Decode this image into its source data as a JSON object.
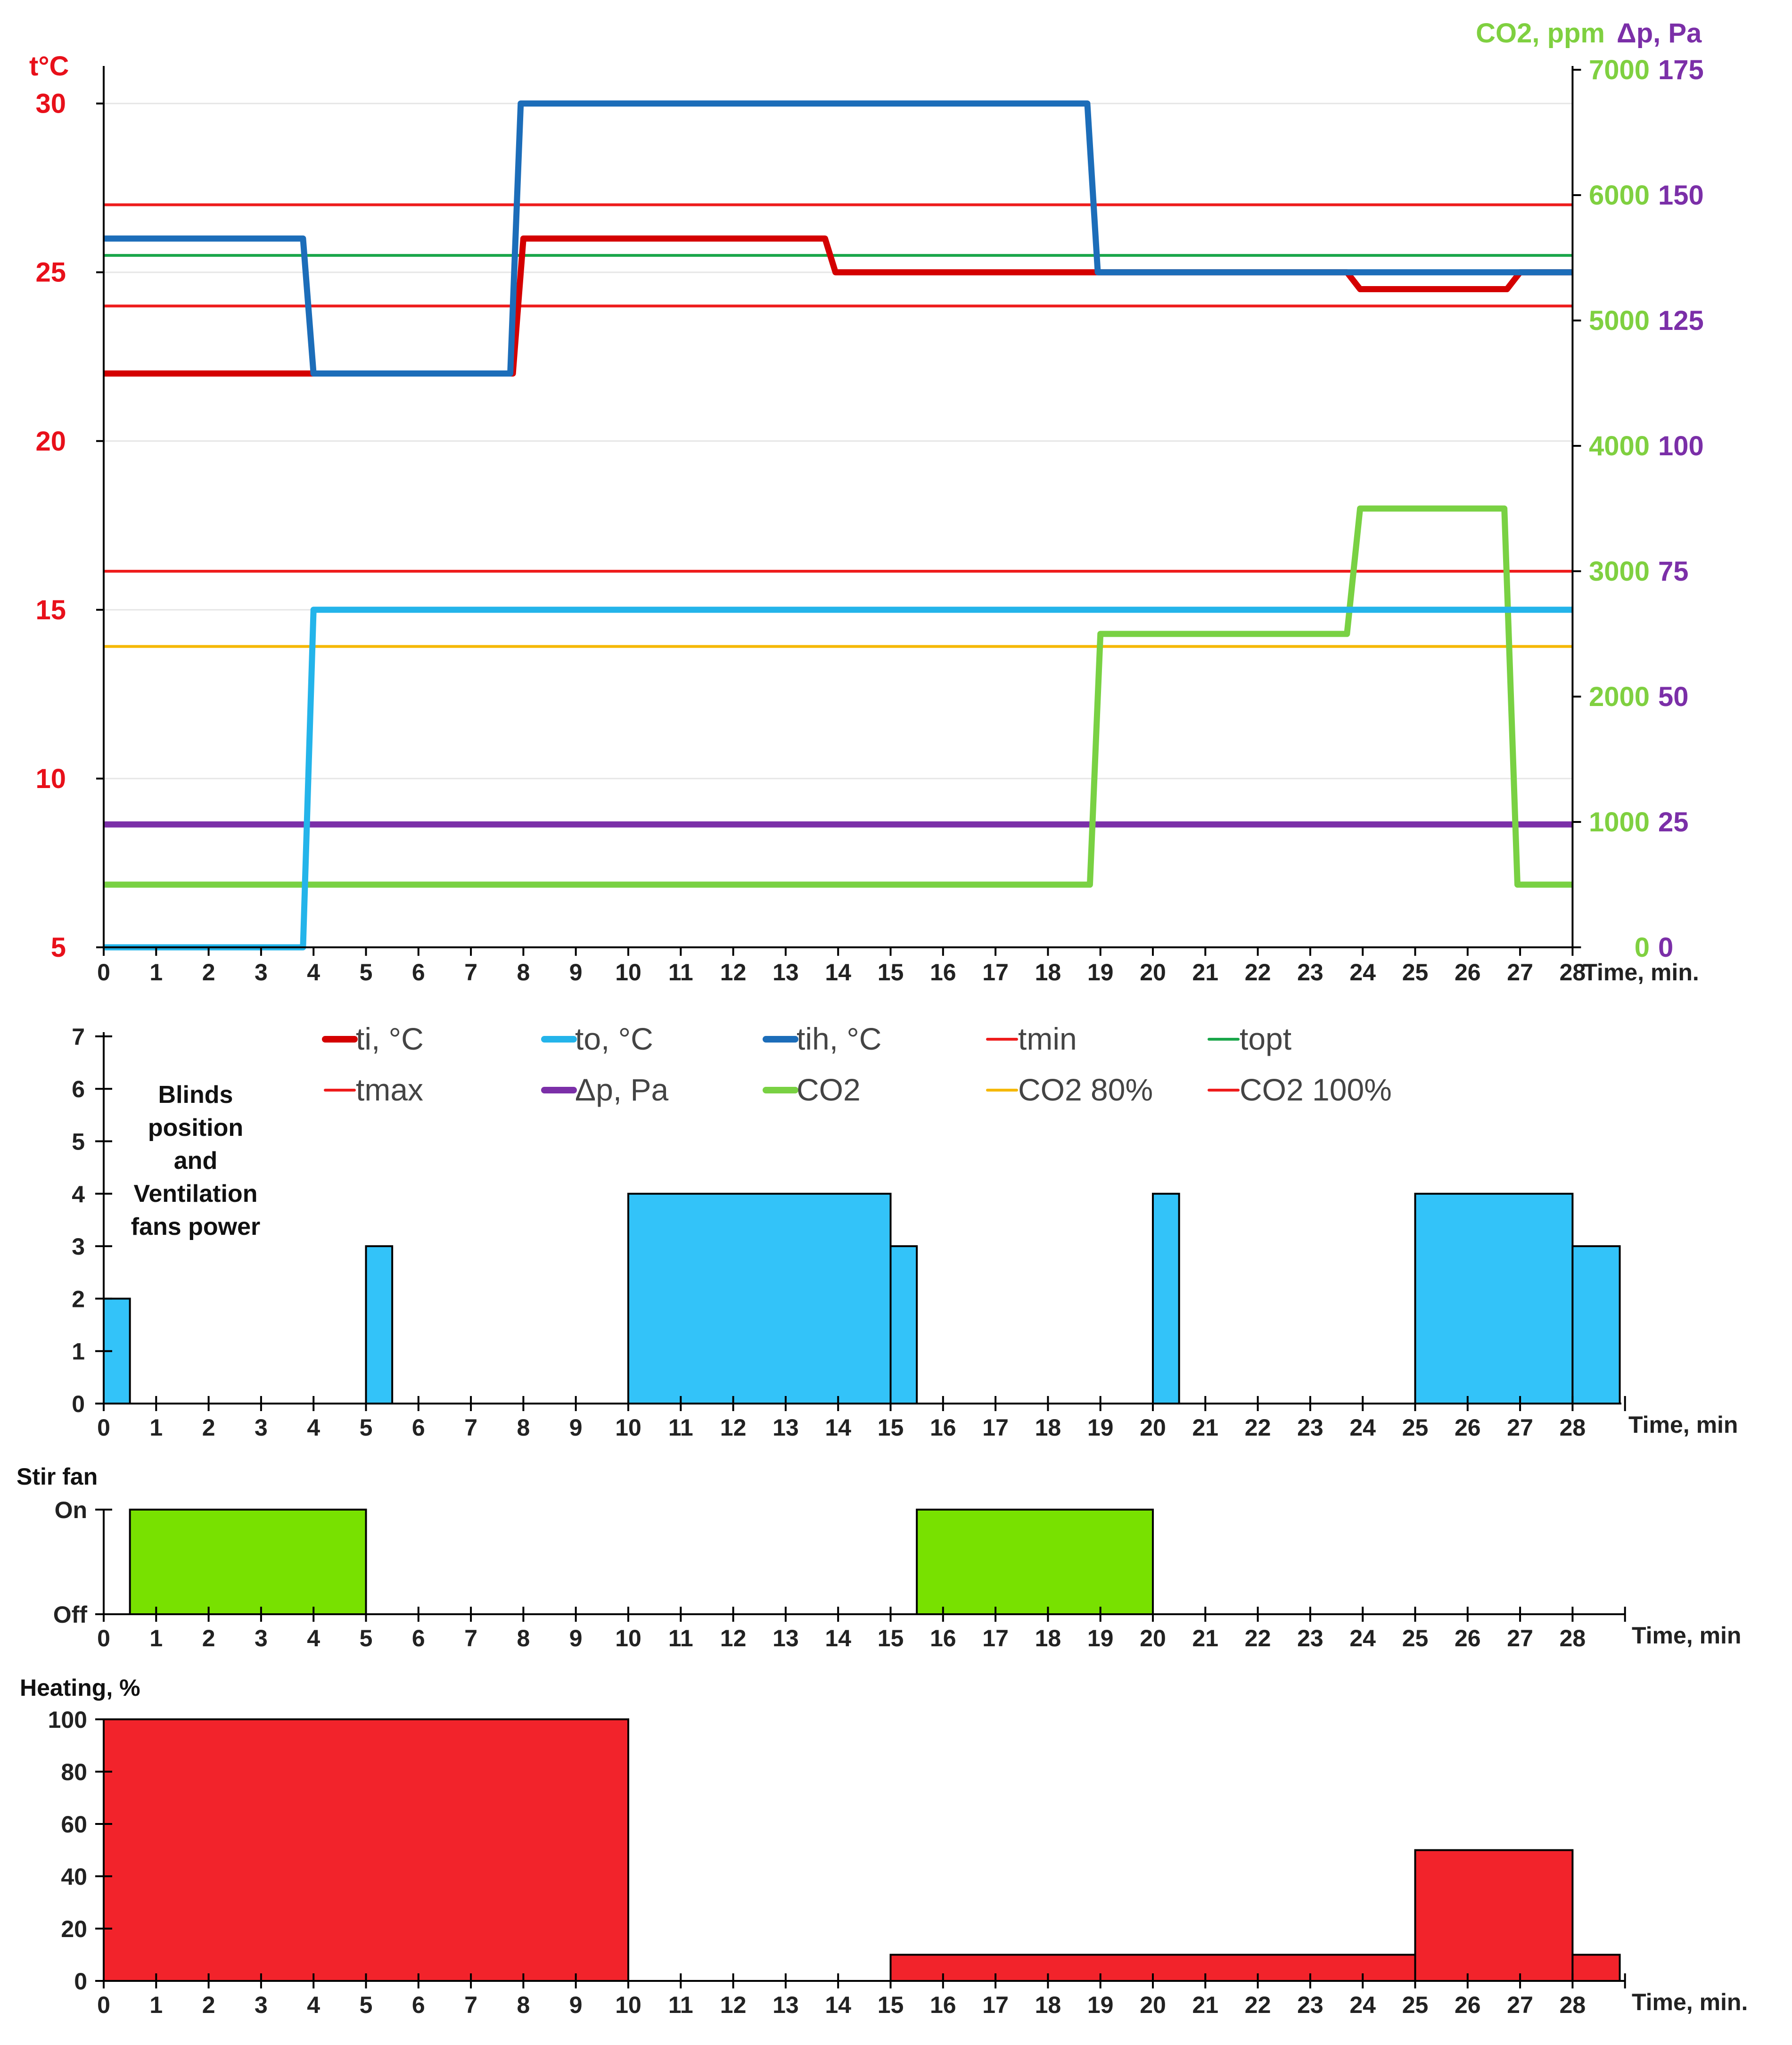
{
  "chart_data": [
    {
      "id": "climate",
      "type": "line",
      "ylabel_left": "t°C",
      "ylabel_right_co2": "CO2, ppm",
      "ylabel_right_dp": "Δp, Pa",
      "xlabel": "Time, min.",
      "xlim": [
        0,
        28
      ],
      "ylim_left": [
        5,
        31
      ],
      "ylim_co2": [
        0,
        7000
      ],
      "ylim_dp": [
        0,
        175
      ],
      "x_ticks": [
        0,
        1,
        2,
        3,
        4,
        5,
        6,
        7,
        8,
        9,
        10,
        11,
        12,
        13,
        14,
        15,
        16,
        17,
        18,
        19,
        20,
        21,
        22,
        23,
        24,
        25,
        26,
        27,
        28
      ],
      "y_ticks_left": [
        5,
        10,
        15,
        20,
        25,
        30
      ],
      "y_ticks_co2": [
        0,
        1000,
        2000,
        3000,
        4000,
        5000,
        6000,
        7000
      ],
      "y_ticks_dp": [
        0,
        25,
        50,
        75,
        100,
        125,
        150,
        175
      ],
      "colors": {
        "left_axis": "#e8101a",
        "co2_axis": "#7fd040",
        "dp_axis": "#7b2fa8"
      },
      "series": [
        {
          "name": "tmax",
          "axis": "left",
          "color": "#ee1c1c",
          "width": 6,
          "x": [
            0,
            28
          ],
          "y": [
            27,
            27
          ]
        },
        {
          "name": "topt",
          "axis": "left",
          "color": "#1aa64a",
          "width": 6,
          "x": [
            0,
            28
          ],
          "y": [
            25.5,
            25.5
          ]
        },
        {
          "name": "tmin",
          "axis": "left",
          "color": "#ee1c1c",
          "width": 6,
          "x": [
            0,
            28
          ],
          "y": [
            24,
            24
          ]
        },
        {
          "name": "CO2 100%",
          "axis": "co2",
          "color": "#ee1c1c",
          "width": 6,
          "x": [
            0,
            28
          ],
          "y": [
            3000,
            3000
          ]
        },
        {
          "name": "CO2 80%",
          "axis": "co2",
          "color": "#f5b800",
          "width": 6,
          "x": [
            0,
            28
          ],
          "y": [
            2400,
            2400
          ]
        },
        {
          "name": "Δp, Pa",
          "axis": "dp",
          "color": "#7b2fa8",
          "width": 13,
          "x": [
            0,
            28
          ],
          "y": [
            24.5,
            24.5
          ]
        },
        {
          "name": "CO2",
          "axis": "co2",
          "color": "#79d143",
          "width": 13,
          "x": [
            0,
            18.8,
            19,
            23.7,
            23.95,
            26.7,
            26.95,
            28
          ],
          "y": [
            500,
            500,
            2500,
            2500,
            3500,
            3500,
            500,
            500
          ]
        },
        {
          "name": "to, °C",
          "axis": "left",
          "color": "#24b4ea",
          "width": 13,
          "x": [
            0,
            3.8,
            4,
            28
          ],
          "y": [
            5,
            5,
            15,
            15
          ]
        },
        {
          "name": "ti, °C",
          "axis": "left",
          "color": "#d40000",
          "width": 13,
          "x": [
            0,
            7.8,
            8,
            13.75,
            13.95,
            23.7,
            23.95,
            26.75,
            27,
            28
          ],
          "y": [
            22,
            22,
            26,
            26,
            25,
            25,
            24.5,
            24.5,
            25,
            25
          ]
        },
        {
          "name": "tih, °C",
          "axis": "left",
          "color": "#1c6db9",
          "width": 13,
          "x": [
            0,
            3.8,
            4,
            7.75,
            7.95,
            18.75,
            18.95,
            28
          ],
          "y": [
            26,
            26,
            22,
            22,
            30,
            30,
            25,
            25
          ]
        }
      ],
      "legend": [
        {
          "label": "ti, °C",
          "color": "#d40000",
          "thick": true
        },
        {
          "label": "to, °C",
          "color": "#24b4ea",
          "thick": true
        },
        {
          "label": "tih, °C",
          "color": "#1c6db9",
          "thick": true
        },
        {
          "label": "tmin",
          "color": "#ee1c1c",
          "thick": false
        },
        {
          "label": "topt",
          "color": "#1aa64a",
          "thick": false
        },
        {
          "label": "tmax",
          "color": "#ee1c1c",
          "thick": false
        },
        {
          "label": "Δp, Pa",
          "color": "#7b2fa8",
          "thick": true
        },
        {
          "label": "CO2",
          "color": "#79d143",
          "thick": true
        },
        {
          "label": "CO2 80%",
          "color": "#f5b800",
          "thick": false
        },
        {
          "label": "CO2 100%",
          "color": "#ee1c1c",
          "thick": false
        }
      ]
    },
    {
      "id": "blinds",
      "type": "bar",
      "title": "Blinds position and Ventilation fans power",
      "title_lines": [
        "Blinds",
        "position",
        "and",
        "Ventilation",
        "fans power"
      ],
      "xlabel": "Time, min",
      "ylim": [
        0,
        7
      ],
      "y_ticks": [
        0,
        1,
        2,
        3,
        4,
        5,
        6,
        7
      ],
      "x_ticks": [
        0,
        1,
        2,
        3,
        4,
        5,
        6,
        7,
        8,
        9,
        10,
        11,
        12,
        13,
        14,
        15,
        16,
        17,
        18,
        19,
        20,
        21,
        22,
        23,
        24,
        25,
        26,
        27,
        28
      ],
      "color": "#33c3f9",
      "bars": [
        {
          "start": 0,
          "end": 0.5,
          "value": 2
        },
        {
          "start": 5,
          "end": 5.5,
          "value": 3
        },
        {
          "start": 10,
          "end": 15,
          "value": 4
        },
        {
          "start": 15,
          "end": 15.5,
          "value": 3
        },
        {
          "start": 20,
          "end": 20.5,
          "value": 4
        },
        {
          "start": 25,
          "end": 28,
          "value": 4
        },
        {
          "start": 28,
          "end": 28.9,
          "value": 3
        }
      ]
    },
    {
      "id": "stirfan",
      "type": "bar",
      "title": "Stir fan",
      "xlabel": "Time, min",
      "y_ticks": [
        "Off",
        "On"
      ],
      "x_ticks": [
        0,
        1,
        2,
        3,
        4,
        5,
        6,
        7,
        8,
        9,
        10,
        11,
        12,
        13,
        14,
        15,
        16,
        17,
        18,
        19,
        20,
        21,
        22,
        23,
        24,
        25,
        26,
        27,
        28
      ],
      "color": "#78e100",
      "bars": [
        {
          "start": 0.5,
          "end": 5,
          "value": 1
        },
        {
          "start": 15.5,
          "end": 20,
          "value": 1
        }
      ]
    },
    {
      "id": "heating",
      "type": "bar",
      "title": "Heating, %",
      "xlabel": "Time, min.",
      "ylim": [
        0,
        100
      ],
      "y_ticks": [
        0,
        20,
        40,
        60,
        80,
        100
      ],
      "x_ticks": [
        0,
        1,
        2,
        3,
        4,
        5,
        6,
        7,
        8,
        9,
        10,
        11,
        12,
        13,
        14,
        15,
        16,
        17,
        18,
        19,
        20,
        21,
        22,
        23,
        24,
        25,
        26,
        27,
        28
      ],
      "color": "#f2232b",
      "bars": [
        {
          "start": 0,
          "end": 10,
          "value": 100
        },
        {
          "start": 15,
          "end": 25,
          "value": 10
        },
        {
          "start": 25,
          "end": 28,
          "value": 50
        },
        {
          "start": 28,
          "end": 28.9,
          "value": 10
        }
      ]
    }
  ]
}
